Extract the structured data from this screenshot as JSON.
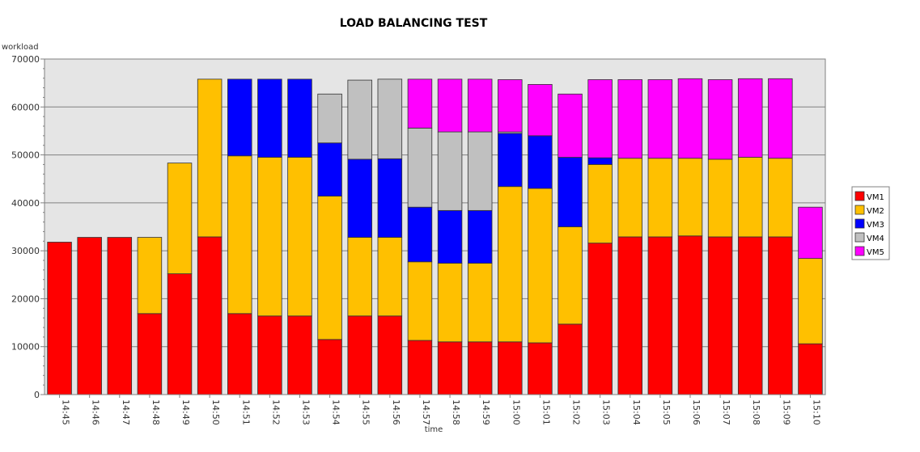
{
  "chart_data": {
    "type": "bar",
    "stacked": true,
    "title": "LOAD BALANCING TEST",
    "xlabel": "time",
    "ylabel": "workload",
    "ylim": [
      0,
      70000
    ],
    "yticks": [
      0,
      10000,
      20000,
      30000,
      40000,
      50000,
      60000,
      70000
    ],
    "grid": true,
    "legend_position": "right",
    "categories": [
      "14:45",
      "14:46",
      "14:47",
      "14:48",
      "14:49",
      "14:50",
      "14:51",
      "14:52",
      "14:53",
      "14:54",
      "14:55",
      "14:56",
      "14:57",
      "14:58",
      "14:59",
      "15:00",
      "15:01",
      "15:02",
      "15:03",
      "15:04",
      "15:05",
      "15:06",
      "15:07",
      "15:08",
      "15:09",
      "15:10"
    ],
    "series": [
      {
        "name": "VM1",
        "color": "#ff0000",
        "values": [
          31800,
          32800,
          32800,
          16900,
          25200,
          32900,
          16900,
          16400,
          16400,
          11500,
          16400,
          16400,
          11300,
          11000,
          11000,
          11000,
          10800,
          14700,
          31600,
          32900,
          32900,
          33100,
          32900,
          32900,
          32900,
          10600
        ]
      },
      {
        "name": "VM2",
        "color": "#ffc000",
        "values": [
          0,
          0,
          0,
          15900,
          23100,
          32900,
          32900,
          33100,
          33100,
          29900,
          16400,
          16400,
          16400,
          16400,
          16400,
          32400,
          32200,
          20300,
          16400,
          16400,
          16400,
          16200,
          16200,
          16600,
          16400,
          17800
        ]
      },
      {
        "name": "VM3",
        "color": "#0000ff",
        "values": [
          0,
          0,
          0,
          0,
          0,
          0,
          16000,
          16300,
          16300,
          11100,
          16300,
          16400,
          11400,
          11000,
          11000,
          11100,
          11000,
          14500,
          1400,
          0,
          0,
          0,
          0,
          0,
          0,
          0
        ]
      },
      {
        "name": "VM4",
        "color": "#c0c0c0",
        "values": [
          0,
          0,
          0,
          0,
          0,
          0,
          0,
          0,
          0,
          10200,
          16500,
          16600,
          16500,
          16400,
          16400,
          300,
          0,
          0,
          0,
          0,
          0,
          0,
          0,
          0,
          0,
          0
        ]
      },
      {
        "name": "VM5",
        "color": "#ff00ff",
        "values": [
          0,
          0,
          0,
          0,
          0,
          0,
          0,
          0,
          0,
          0,
          0,
          0,
          10200,
          11000,
          11000,
          10900,
          10700,
          13200,
          16300,
          16400,
          16400,
          16600,
          16600,
          16400,
          16600,
          10700
        ]
      }
    ]
  }
}
